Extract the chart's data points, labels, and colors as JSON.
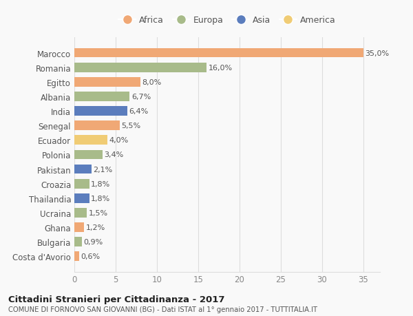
{
  "countries": [
    "Costa d'Avorio",
    "Bulgaria",
    "Ghana",
    "Ucraina",
    "Thailandia",
    "Croazia",
    "Pakistan",
    "Polonia",
    "Ecuador",
    "Senegal",
    "India",
    "Albania",
    "Egitto",
    "Romania",
    "Marocco"
  ],
  "values": [
    0.6,
    0.9,
    1.2,
    1.5,
    1.8,
    1.8,
    2.1,
    3.4,
    4.0,
    5.5,
    6.4,
    6.7,
    8.0,
    16.0,
    35.0
  ],
  "labels": [
    "0,6%",
    "0,9%",
    "1,2%",
    "1,5%",
    "1,8%",
    "1,8%",
    "2,1%",
    "3,4%",
    "4,0%",
    "5,5%",
    "6,4%",
    "6,7%",
    "8,0%",
    "16,0%",
    "35,0%"
  ],
  "continents": [
    "Africa",
    "Europa",
    "Africa",
    "Europa",
    "Asia",
    "Europa",
    "Asia",
    "Europa",
    "America",
    "Africa",
    "Asia",
    "Europa",
    "Africa",
    "Europa",
    "Africa"
  ],
  "colors": {
    "Africa": "#F0A875",
    "Europa": "#A8BB8A",
    "Asia": "#5B7DBD",
    "America": "#F0CC75"
  },
  "legend_order": [
    "Africa",
    "Europa",
    "Asia",
    "America"
  ],
  "xlim": [
    0,
    37
  ],
  "xticks": [
    0,
    5,
    10,
    15,
    20,
    25,
    30,
    35
  ],
  "title": "Cittadini Stranieri per Cittadinanza - 2017",
  "subtitle": "COMUNE DI FORNOVO SAN GIOVANNI (BG) - Dati ISTAT al 1° gennaio 2017 - TUTTITALIA.IT",
  "bg_color": "#f9f9f9",
  "grid_color": "#dddddd",
  "bar_height": 0.65
}
